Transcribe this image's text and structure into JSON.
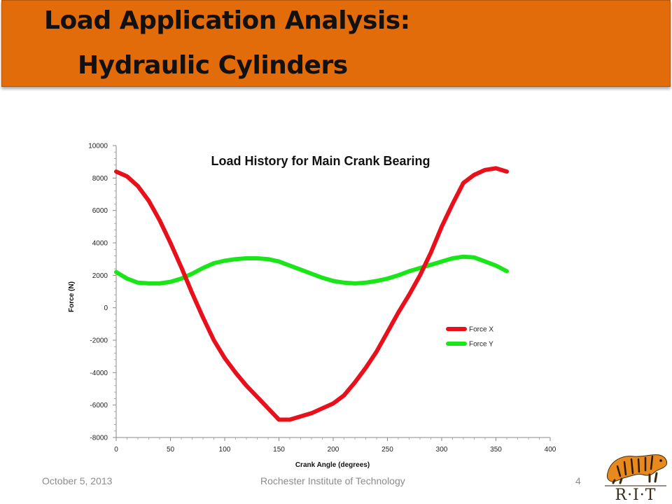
{
  "slide": {
    "title_line1": "Load Application Analysis:",
    "title_line2": "Hydraulic Cylinders",
    "colors": {
      "title_bar": "#e36c0a",
      "force_x": "#e8101a",
      "force_y": "#19e619"
    }
  },
  "footer": {
    "date": "October 5, 2013",
    "organization": "Rochester Institute of Technology",
    "page_number": "4"
  },
  "logo": {
    "text": "R·I·T",
    "icon": "tiger-logo-icon"
  },
  "chart_data": {
    "type": "line",
    "title": "Load History for Main Crank Bearing",
    "xlabel": "Crank Angle (degrees)",
    "ylabel": "Force (N)",
    "xlim": [
      0,
      400
    ],
    "ylim": [
      -8000,
      10000
    ],
    "x_ticks": [
      "0",
      "50",
      "100",
      "150",
      "200",
      "250",
      "300",
      "350",
      "400"
    ],
    "y_ticks": [
      "10000",
      "8000",
      "6000",
      "4000",
      "2000",
      "0",
      "-2000",
      "-4000",
      "-6000",
      "-8000"
    ],
    "grid": false,
    "legend_position": "right",
    "x": [
      0,
      10,
      20,
      30,
      40,
      50,
      60,
      70,
      80,
      90,
      100,
      110,
      120,
      130,
      140,
      150,
      160,
      170,
      180,
      190,
      200,
      210,
      220,
      230,
      240,
      250,
      260,
      270,
      280,
      290,
      300,
      310,
      320,
      330,
      340,
      350,
      360
    ],
    "series": [
      {
        "name": "Force X",
        "color": "#e8101a",
        "values": [
          8400,
          8100,
          7500,
          6600,
          5400,
          4000,
          2500,
          900,
          -600,
          -2000,
          -3100,
          -4000,
          -4800,
          -5500,
          -6200,
          -6900,
          -6900,
          -6700,
          -6500,
          -6200,
          -5900,
          -5400,
          -4600,
          -3700,
          -2700,
          -1500,
          -300,
          800,
          2000,
          3400,
          5000,
          6400,
          7700,
          8200,
          8500,
          8600,
          8400
        ]
      },
      {
        "name": "Force Y",
        "color": "#19e619",
        "values": [
          2200,
          1800,
          1550,
          1500,
          1500,
          1600,
          1800,
          2100,
          2450,
          2750,
          2900,
          3000,
          3050,
          3050,
          3000,
          2850,
          2600,
          2350,
          2100,
          1850,
          1650,
          1550,
          1500,
          1550,
          1650,
          1800,
          2000,
          2250,
          2450,
          2650,
          2850,
          3050,
          3150,
          3100,
          2850,
          2600,
          2250
        ]
      }
    ]
  }
}
